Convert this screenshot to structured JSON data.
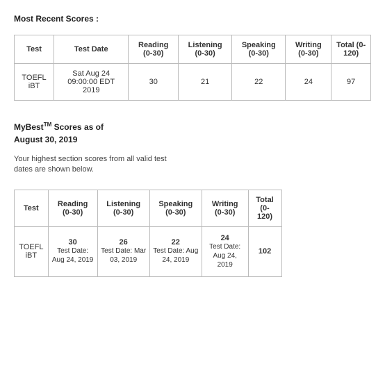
{
  "recent": {
    "title": "Most Recent Scores :",
    "headers": {
      "test": "Test",
      "date": "Test Date",
      "reading": "Reading (0-30)",
      "listening": "Listening (0-30)",
      "speaking": "Speaking (0-30)",
      "writing": "Writing (0-30)",
      "total": "Total (0-120)"
    },
    "row": {
      "test": "TOEFL iBT",
      "date": "Sat Aug 24 09:00:00 EDT 2019",
      "reading": "30",
      "listening": "21",
      "speaking": "22",
      "writing": "24",
      "total": "97"
    }
  },
  "mybest": {
    "title_prefix": "MyBest",
    "title_tm": "TM",
    "title_suffix": " Scores as of",
    "date_line": "August 30, 2019",
    "desc": "Your highest section scores from all valid test dates are shown below.",
    "headers": {
      "test": "Test",
      "reading": "Reading (0-30)",
      "listening": "Listening (0-30)",
      "speaking": "Speaking (0-30)",
      "writing": "Writing (0-30)",
      "total": "Total (0-120)"
    },
    "row": {
      "test": "TOEFL iBT",
      "reading_val": "30",
      "reading_sub": "Test Date: Aug 24, 2019",
      "listening_val": "26",
      "listening_sub": "Test Date: Mar 03, 2019",
      "speaking_val": "22",
      "speaking_sub": "Test Date: Aug 24, 2019",
      "writing_val": "24",
      "writing_sub": "Test Date: Aug 24, 2019",
      "total": "102"
    }
  }
}
